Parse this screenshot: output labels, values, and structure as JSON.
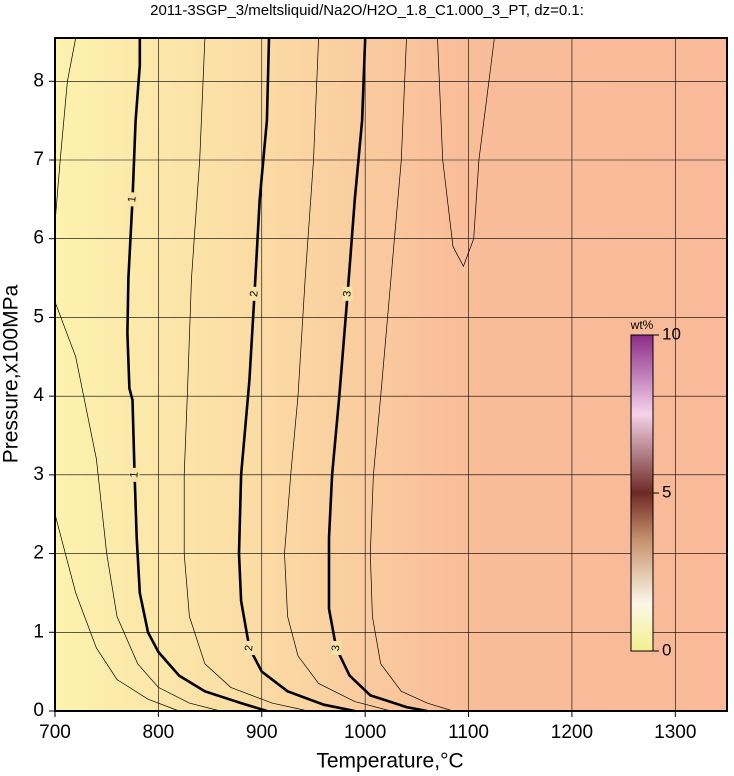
{
  "chart_data": {
    "type": "contour",
    "title": "2011-3SGP_3/meltsliquid/Na2O/H2O_1.8_C1.000_3_PT, dz=0.1:",
    "x_label": "Temperature,°C",
    "y_label": "Pressure,x100MPa",
    "xlim": [
      700,
      1350
    ],
    "ylim": [
      0,
      8.55
    ],
    "xticks": [
      700,
      800,
      900,
      1000,
      1100,
      1200,
      1300
    ],
    "yticks": [
      0,
      1,
      2,
      3,
      4,
      5,
      6,
      7,
      8
    ],
    "grid": true,
    "series": [
      {
        "level": 1,
        "labeled": true,
        "x": [
          782,
          782,
          778,
          775,
          771,
          770,
          772,
          775,
          777,
          779,
          782,
          790,
          800,
          820,
          845,
          880,
          905
        ],
        "y": [
          8.55,
          8.2,
          7.5,
          6.5,
          5.5,
          4.8,
          4.1,
          3.95,
          3.0,
          2.2,
          1.5,
          1.0,
          0.75,
          0.45,
          0.25,
          0.1,
          0
        ]
      },
      {
        "level": 2,
        "labeled": true,
        "x": [
          907,
          905,
          898,
          893,
          888,
          880,
          878,
          880,
          888,
          900,
          925,
          960,
          990
        ],
        "y": [
          8.55,
          7.5,
          6.5,
          5.3,
          4.2,
          3.0,
          2.0,
          1.4,
          0.8,
          0.5,
          0.25,
          0.08,
          0
        ]
      },
      {
        "level": 3,
        "labeled": true,
        "x": [
          1000,
          997,
          990,
          983,
          975,
          968,
          965,
          965,
          972,
          985,
          1005,
          1040,
          1060
        ],
        "y": [
          8.55,
          7.5,
          6.5,
          5.3,
          4.0,
          3.0,
          2.2,
          1.3,
          0.8,
          0.45,
          0.2,
          0.05,
          0
        ]
      },
      {
        "level": 1.5,
        "labeled": false,
        "x": [
          845,
          840,
          832,
          828,
          825,
          825,
          830,
          845,
          870,
          910,
          945
        ],
        "y": [
          8.55,
          7,
          5.5,
          4,
          3,
          2,
          1.2,
          0.6,
          0.3,
          0.1,
          0
        ]
      },
      {
        "level": 2.5,
        "labeled": false,
        "x": [
          955,
          950,
          942,
          935,
          928,
          922,
          925,
          935,
          955,
          990,
          1025
        ],
        "y": [
          8.55,
          7,
          5.5,
          4,
          3,
          2,
          1.2,
          0.7,
          0.35,
          0.12,
          0
        ]
      },
      {
        "level": 3.5,
        "labeled": false,
        "x": [
          1040,
          1035,
          1025,
          1015,
          1008,
          1005,
          1007,
          1015,
          1035,
          1060,
          1085
        ],
        "y": [
          8.55,
          7,
          5.5,
          4,
          3,
          2,
          1.2,
          0.6,
          0.25,
          0.1,
          0
        ]
      },
      {
        "level": 3.9,
        "labeled": false,
        "x": [
          1070,
          1075,
          1085,
          1095,
          1105,
          1110,
          1125
        ],
        "y": [
          8.55,
          7,
          5.9,
          5.65,
          6,
          7,
          8.55
        ]
      },
      {
        "level": 0.5,
        "labeled": false,
        "x": [
          700,
          720,
          740,
          750,
          760,
          780,
          800,
          830,
          860
        ],
        "y": [
          5.2,
          4.5,
          3.2,
          2,
          1.2,
          0.6,
          0.3,
          0.1,
          0
        ]
      },
      {
        "level": 0.6,
        "labeled": false,
        "x": [
          700,
          705,
          712,
          720
        ],
        "y": [
          6.2,
          7,
          8,
          8.55
        ]
      },
      {
        "level": 0.3,
        "labeled": false,
        "x": [
          700,
          720,
          740,
          760,
          790,
          820
        ],
        "y": [
          2.5,
          1.5,
          0.8,
          0.4,
          0.15,
          0
        ]
      }
    ],
    "colorbar": {
      "label": "wt%",
      "lim": [
        0,
        10
      ],
      "ticks": [
        0,
        5,
        10
      ]
    }
  }
}
